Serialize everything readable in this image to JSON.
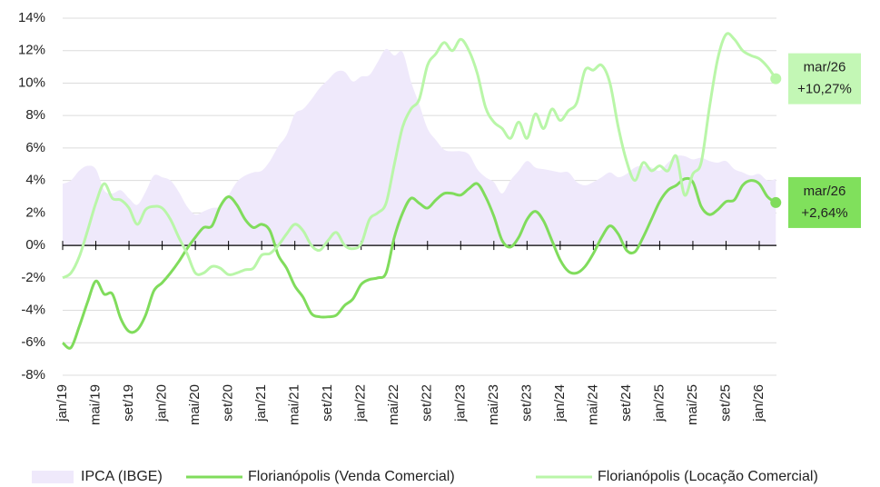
{
  "chart_data": {
    "type": "line",
    "categories": [
      "jan/19",
      null,
      null,
      null,
      "mai/19",
      null,
      null,
      null,
      "set/19",
      null,
      null,
      null,
      "jan/20",
      null,
      null,
      null,
      "mai/20",
      null,
      null,
      null,
      "set/20",
      null,
      null,
      null,
      "jan/21",
      null,
      null,
      null,
      "mai/21",
      null,
      null,
      null,
      "set/21",
      null,
      null,
      null,
      "jan/22",
      null,
      null,
      null,
      "mai/22",
      null,
      null,
      null,
      "set/22",
      null,
      null,
      null,
      "jan/23",
      null,
      null,
      null,
      "mai/23",
      null,
      null,
      null,
      "set/23",
      null,
      null,
      null,
      "jan/24",
      null,
      null,
      null,
      "mai/24",
      null,
      null,
      null,
      "set/24",
      null,
      null,
      null,
      "jan/25",
      null,
      null,
      null,
      "mai/25",
      null,
      null,
      null,
      "set/25",
      null,
      null,
      null,
      "jan/26",
      null,
      null
    ],
    "ylim": [
      -8,
      14
    ],
    "yticks": [
      {
        "value": -8,
        "label": "-8%"
      },
      {
        "value": -6,
        "label": "-6%"
      },
      {
        "value": -4,
        "label": "-4%"
      },
      {
        "value": -2,
        "label": "-2%"
      },
      {
        "value": 0,
        "label": "0%"
      },
      {
        "value": 2,
        "label": "2%"
      },
      {
        "value": 4,
        "label": "4%"
      },
      {
        "value": 6,
        "label": "6%"
      },
      {
        "value": 8,
        "label": "8%"
      },
      {
        "value": 10,
        "label": "10%"
      },
      {
        "value": 12,
        "label": "12%"
      },
      {
        "value": 14,
        "label": "14%"
      }
    ],
    "grid": true,
    "legend": "bottom",
    "series": [
      {
        "name": "IPCA (IBGE)",
        "kind": "area",
        "color": "#efe9fb",
        "values": [
          3.8,
          4.0,
          4.6,
          4.9,
          4.7,
          3.4,
          3.2,
          3.4,
          2.9,
          2.5,
          3.3,
          4.3,
          4.2,
          4.0,
          3.3,
          2.4,
          1.9,
          2.1,
          2.3,
          2.4,
          3.1,
          3.9,
          4.3,
          4.5,
          4.6,
          5.2,
          6.1,
          6.8,
          8.1,
          8.4,
          9.0,
          9.7,
          10.2,
          10.7,
          10.7,
          10.1,
          10.4,
          10.5,
          11.3,
          12.1,
          11.7,
          11.9,
          10.1,
          8.7,
          7.2,
          6.5,
          5.9,
          5.8,
          5.8,
          5.6,
          4.7,
          4.2,
          3.9,
          3.2,
          4.0,
          4.6,
          5.2,
          4.8,
          4.7,
          4.6,
          4.5,
          4.5,
          3.9,
          3.7,
          3.9,
          4.2,
          4.5,
          4.2,
          4.4,
          4.8,
          4.9,
          4.8,
          4.6,
          5.1,
          5.5,
          5.5,
          5.3,
          5.4,
          5.2,
          5.1,
          5.2,
          4.7,
          4.5,
          4.3,
          4.4,
          4.0,
          4.1
        ]
      },
      {
        "name": "Florianópolis (Venda Comercial)",
        "kind": "line",
        "color": "#80dc5c",
        "values": [
          -6.0,
          -6.3,
          -5.0,
          -3.5,
          -2.2,
          -3.0,
          -3.0,
          -4.5,
          -5.3,
          -5.2,
          -4.3,
          -2.8,
          -2.3,
          -1.7,
          -1.0,
          -0.2,
          0.5,
          1.1,
          1.2,
          2.4,
          3.0,
          2.5,
          1.6,
          1.1,
          1.3,
          0.9,
          -0.6,
          -1.4,
          -2.5,
          -3.2,
          -4.2,
          -4.4,
          -4.4,
          -4.3,
          -3.7,
          -3.3,
          -2.4,
          -2.1,
          -2.0,
          -1.7,
          0.5,
          2.0,
          2.9,
          2.6,
          2.3,
          2.8,
          3.2,
          3.2,
          3.1,
          3.5,
          3.8,
          3.0,
          1.8,
          0.3,
          -0.1,
          0.5,
          1.6,
          2.1,
          1.5,
          0.3,
          -0.9,
          -1.6,
          -1.7,
          -1.3,
          -0.5,
          0.5,
          1.2,
          0.7,
          -0.3,
          -0.4,
          0.5,
          1.6,
          2.7,
          3.4,
          3.7,
          4.1,
          3.9,
          2.4,
          1.9,
          2.2,
          2.7,
          2.8,
          3.7,
          4.0,
          3.8,
          3.0,
          2.64
        ],
        "end_annotation": {
          "date": "mar/26",
          "label": "+2,64%",
          "color": "#80e05c"
        }
      },
      {
        "name": "Florianópolis (Locação Comercial)",
        "kind": "line",
        "color": "#b9f6a8",
        "values": [
          -2.0,
          -1.7,
          -0.7,
          0.9,
          2.6,
          3.8,
          2.9,
          2.8,
          2.3,
          1.3,
          2.2,
          2.4,
          2.3,
          1.6,
          0.5,
          -0.5,
          -1.7,
          -1.7,
          -1.3,
          -1.4,
          -1.8,
          -1.7,
          -1.5,
          -1.4,
          -0.6,
          -0.5,
          0.0,
          0.7,
          1.3,
          0.9,
          0.0,
          -0.3,
          0.3,
          0.8,
          0.0,
          -0.2,
          0.1,
          1.6,
          2.0,
          2.6,
          5.0,
          7.3,
          8.4,
          9.0,
          11.1,
          11.8,
          12.5,
          12.0,
          12.7,
          12.0,
          10.6,
          8.5,
          7.6,
          7.2,
          6.6,
          7.6,
          6.6,
          8.1,
          7.2,
          8.4,
          7.7,
          8.3,
          8.8,
          10.8,
          10.8,
          11.1,
          10.0,
          7.3,
          5.2,
          4.0,
          5.1,
          4.6,
          4.9,
          4.6,
          5.5,
          3.1,
          4.4,
          5.1,
          8.5,
          11.5,
          13.0,
          12.7,
          12.0,
          11.7,
          11.5,
          11.0,
          10.27
        ],
        "end_annotation": {
          "date": "mar/26",
          "label": "+10,27%",
          "color": "#c3f7b5"
        }
      }
    ]
  }
}
